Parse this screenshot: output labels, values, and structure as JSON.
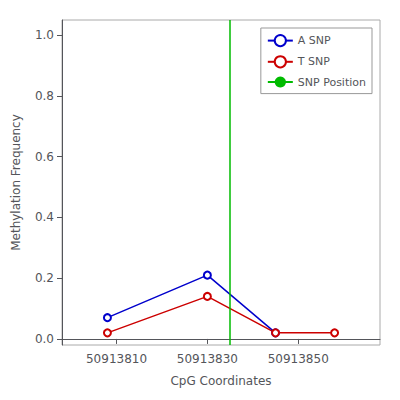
{
  "chart_data": {
    "type": "line",
    "xlabel": "CpG Coordinates",
    "ylabel": "Methylation Frequency",
    "series": [
      {
        "name": "A SNP",
        "color": "#0000cc",
        "x": [
          50913808,
          50913830,
          50913845
        ],
        "values": [
          0.07,
          0.21,
          0.02
        ]
      },
      {
        "name": "T SNP",
        "color": "#cc0000",
        "x": [
          50913808,
          50913830,
          50913845,
          50913858
        ],
        "values": [
          0.02,
          0.14,
          0.02,
          0.02
        ]
      },
      {
        "name": "SNP Position",
        "type": "vline",
        "color": "#00bb00",
        "x": 50913835
      }
    ],
    "marker": "circle",
    "xlim": [
      50913798,
      50913868
    ],
    "xticks": [
      50913810,
      50913830,
      50913850
    ],
    "ylim": [
      -0.02,
      1.05
    ],
    "yticks": [
      {
        "value": 0.0,
        "label": "0.0"
      },
      0.2,
      0.4,
      0.6,
      0.8,
      {
        "value": 1.0,
        "label": "1.0"
      }
    ],
    "grid": false,
    "legend": "upper right"
  }
}
